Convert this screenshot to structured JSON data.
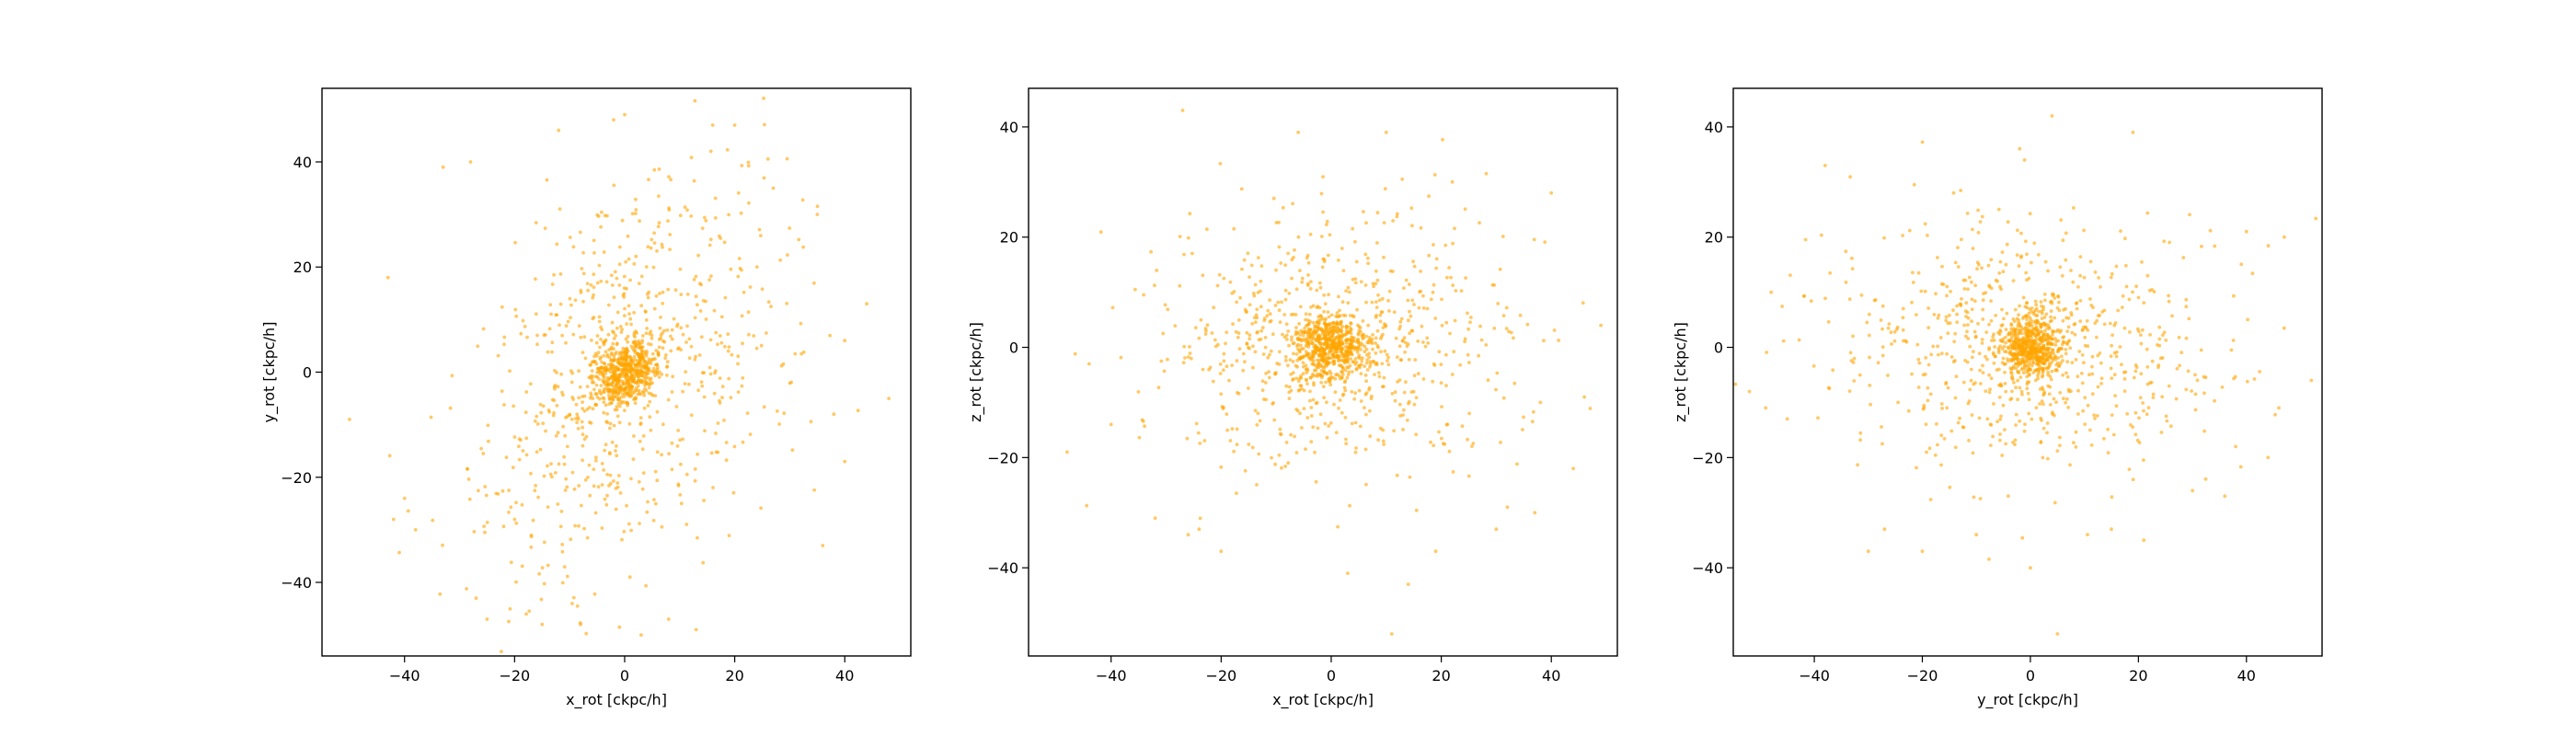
{
  "figure": {
    "background": "#ffffff",
    "point_color": "#ffa500",
    "point_opacity": 0.6
  },
  "chart_data": [
    {
      "type": "scatter",
      "title": "",
      "xlabel": "x_rot [ckpc/h]",
      "ylabel": "y_rot [ckpc/h]",
      "xlim": [
        -55,
        52
      ],
      "ylim": [
        -54,
        54
      ],
      "xticks": [
        -40,
        -20,
        0,
        20,
        40
      ],
      "yticks": [
        -40,
        -20,
        0,
        20,
        40
      ],
      "grid": false,
      "legend": "none",
      "series": [
        {
          "color": "#ffa500",
          "distribution": {
            "core_sigma_x": 3,
            "core_sigma_y": 3,
            "halo_sigma_x": 15,
            "halo_sigma_y": 19,
            "tilt": 0.45,
            "count": 1300,
            "seed": 11
          },
          "points": [
            [
              -50,
              -9
            ],
            [
              -43,
              18
            ],
            [
              -42,
              -28
            ],
            [
              -40,
              -24
            ],
            [
              -38,
              -30
            ],
            [
              -33,
              39
            ],
            [
              -28,
              40
            ],
            [
              -27,
              -43
            ],
            [
              -25,
              -47
            ],
            [
              -20,
              -28
            ],
            [
              -15,
              -48
            ],
            [
              -8,
              -48
            ],
            [
              -2,
              48
            ],
            [
              0,
              49
            ],
            [
              8,
              -47
            ],
            [
              13,
              -49
            ],
            [
              16,
              47
            ],
            [
              20,
              47
            ],
            [
              27,
              35
            ],
            [
              35,
              30
            ],
            [
              38,
              -8
            ],
            [
              40,
              -17
            ],
            [
              44,
              13
            ],
            [
              48,
              -5
            ],
            [
              36,
              -33
            ],
            [
              40,
              6
            ],
            [
              3,
              -50
            ],
            [
              -12,
              46
            ]
          ]
        }
      ]
    },
    {
      "type": "scatter",
      "title": "",
      "xlabel": "x_rot [ckpc/h]",
      "ylabel": "z_rot [ckpc/h]",
      "xlim": [
        -55,
        52
      ],
      "ylim": [
        -56,
        47
      ],
      "xticks": [
        -40,
        -20,
        0,
        20,
        40
      ],
      "yticks": [
        -40,
        -20,
        0,
        20,
        40
      ],
      "grid": false,
      "legend": "none",
      "series": [
        {
          "color": "#ffa500",
          "distribution": {
            "core_sigma_x": 3.5,
            "core_sigma_y": 2.8,
            "halo_sigma_x": 16,
            "halo_sigma_y": 11.5,
            "tilt": 0,
            "count": 1300,
            "seed": 23
          },
          "points": [
            [
              -48,
              -19
            ],
            [
              -44,
              -3
            ],
            [
              -40,
              -14
            ],
            [
              -27,
              43
            ],
            [
              -26,
              -34
            ],
            [
              -24,
              -33
            ],
            [
              -20,
              -37
            ],
            [
              -6,
              39
            ],
            [
              3,
              -41
            ],
            [
              10,
              39
            ],
            [
              11,
              -52
            ],
            [
              14,
              -43
            ],
            [
              19,
              -37
            ],
            [
              22,
              30
            ],
            [
              32,
              -29
            ],
            [
              37,
              -30
            ],
            [
              38,
              -10
            ],
            [
              44,
              -22
            ],
            [
              46,
              -9
            ],
            [
              49,
              4
            ],
            [
              40,
              28
            ],
            [
              -32,
              -31
            ],
            [
              30,
              -33
            ]
          ]
        }
      ]
    },
    {
      "type": "scatter",
      "title": "",
      "xlabel": "y_rot [ckpc/h]",
      "ylabel": "z_rot [ckpc/h]",
      "xlim": [
        -55,
        54
      ],
      "ylim": [
        -56,
        47
      ],
      "xticks": [
        -40,
        -20,
        0,
        20,
        40
      ],
      "yticks": [
        -40,
        -20,
        0,
        20,
        40
      ],
      "grid": false,
      "legend": "none",
      "series": [
        {
          "color": "#ffa500",
          "distribution": {
            "core_sigma_x": 3,
            "core_sigma_y": 2.8,
            "halo_sigma_x": 17,
            "halo_sigma_y": 12,
            "tilt": 0,
            "count": 1300,
            "seed": 37
          },
          "points": [
            [
              -52,
              -8
            ],
            [
              -49,
              -11
            ],
            [
              -45,
              -13
            ],
            [
              -30,
              -37
            ],
            [
              -27,
              -33
            ],
            [
              -20,
              -37
            ],
            [
              -10,
              -34
            ],
            [
              0,
              -40
            ],
            [
              4,
              42
            ],
            [
              5,
              -52
            ],
            [
              15,
              -33
            ],
            [
              19,
              39
            ],
            [
              21,
              -35
            ],
            [
              30,
              -26
            ],
            [
              36,
              -27
            ],
            [
              38,
              -18
            ],
            [
              40,
              21
            ],
            [
              44,
              -20
            ],
            [
              46,
              -11
            ],
            [
              47,
              20
            ],
            [
              52,
              -6
            ],
            [
              -48,
              10
            ],
            [
              -38,
              33
            ]
          ]
        }
      ]
    }
  ]
}
